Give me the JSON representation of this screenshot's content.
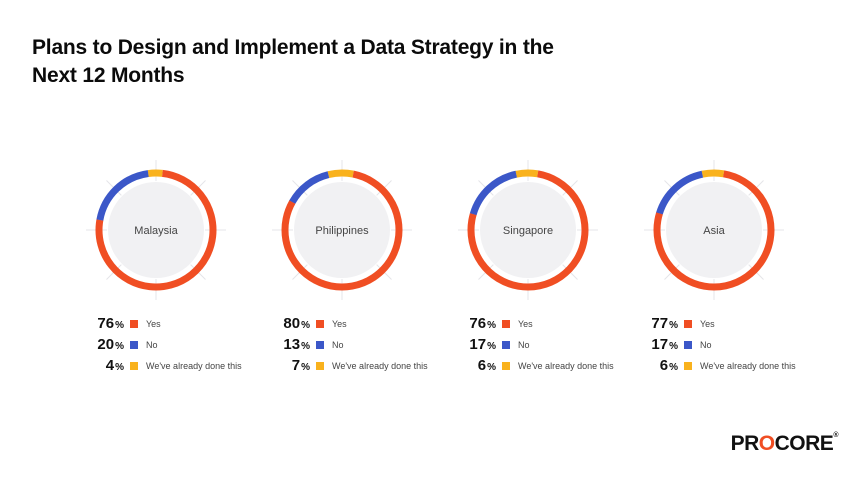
{
  "title_lines": [
    "Plans to Design and Implement a Data Strategy in the",
    "Next 12 Months"
  ],
  "colors": {
    "yes": "#f04e23",
    "no": "#3b57c8",
    "done": "#f9b21d",
    "inner": "#f1f1f3"
  },
  "chart_data": {
    "type": "pie",
    "title": "Plans to Design and Implement a Data Strategy in the Next 12 Months",
    "categories": [
      "Yes",
      "No",
      "We've already done this"
    ],
    "series": [
      {
        "name": "Malaysia",
        "values": [
          76,
          20,
          4
        ]
      },
      {
        "name": "Philippines",
        "values": [
          80,
          13,
          7
        ]
      },
      {
        "name": "Singapore",
        "values": [
          76,
          17,
          6
        ]
      },
      {
        "name": "Asia",
        "values": [
          77,
          17,
          6
        ]
      }
    ],
    "unit": "%"
  },
  "logo": {
    "text_a": "PR",
    "text_o": "O",
    "text_b": "CORE",
    "mark": "®"
  }
}
